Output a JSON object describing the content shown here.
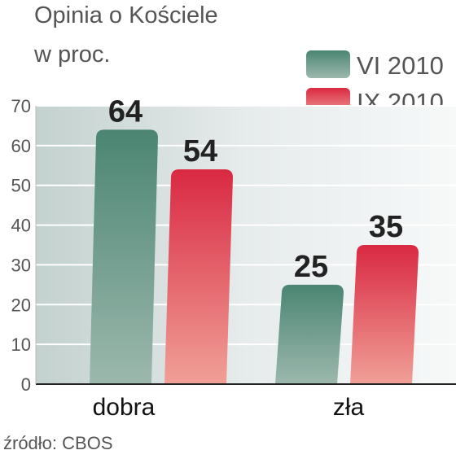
{
  "chart_data": {
    "type": "bar",
    "title": "Opinia o Kościele",
    "subtitle": "w proc.",
    "categories": [
      "dobra",
      "zła"
    ],
    "series": [
      {
        "name": "VI 2010",
        "values": [
          64,
          25
        ]
      },
      {
        "name": "IX 2010",
        "values": [
          54,
          35
        ]
      }
    ],
    "ylim": [
      0,
      70
    ],
    "yticks": [
      "0",
      "10",
      "20",
      "30",
      "40",
      "50",
      "60",
      "70"
    ],
    "grid": true,
    "legend_position": "top-right",
    "source": "źródło: CBOS"
  },
  "colors": {
    "series_1": "#4f8a76",
    "series_2": "#e0344a",
    "grid": "#ffffff",
    "background_band": "#dde4e4"
  }
}
